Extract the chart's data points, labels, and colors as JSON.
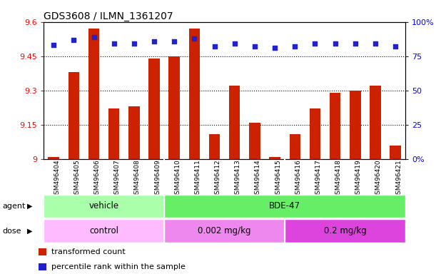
{
  "title": "GDS3608 / ILMN_1361207",
  "samples": [
    "GSM496404",
    "GSM496405",
    "GSM496406",
    "GSM496407",
    "GSM496408",
    "GSM496409",
    "GSM496410",
    "GSM496411",
    "GSM496412",
    "GSM496413",
    "GSM496414",
    "GSM496415",
    "GSM496416",
    "GSM496417",
    "GSM496418",
    "GSM496419",
    "GSM496420",
    "GSM496421"
  ],
  "bar_values": [
    9.01,
    9.38,
    9.57,
    9.22,
    9.23,
    9.44,
    9.45,
    9.57,
    9.11,
    9.32,
    9.16,
    9.01,
    9.11,
    9.22,
    9.29,
    9.3,
    9.32,
    9.06
  ],
  "dot_values": [
    83,
    87,
    89,
    84,
    84,
    86,
    86,
    88,
    82,
    84,
    82,
    81,
    82,
    84,
    84,
    84,
    84,
    82
  ],
  "ylim_left": [
    9.0,
    9.6
  ],
  "ylim_right": [
    0,
    100
  ],
  "yticks_left": [
    9.0,
    9.15,
    9.3,
    9.45,
    9.6
  ],
  "ytick_left_labels": [
    "9",
    "9.15",
    "9.3",
    "9.45",
    "9.6"
  ],
  "yticks_right": [
    0,
    25,
    50,
    75,
    100
  ],
  "ytick_right_labels": [
    "0%",
    "25",
    "50",
    "75",
    "100%"
  ],
  "hlines": [
    9.15,
    9.3,
    9.45
  ],
  "bar_color": "#cc2200",
  "dot_color": "#2222cc",
  "bar_width": 0.55,
  "agent_groups": [
    {
      "label": "vehicle",
      "start": 0,
      "end": 5,
      "color": "#aaffaa"
    },
    {
      "label": "BDE-47",
      "start": 6,
      "end": 17,
      "color": "#66ee66"
    }
  ],
  "dose_groups": [
    {
      "label": "control",
      "start": 0,
      "end": 5,
      "color": "#ffbbff"
    },
    {
      "label": "0.002 mg/kg",
      "start": 6,
      "end": 11,
      "color": "#ee88ee"
    },
    {
      "label": "0.2 mg/kg",
      "start": 12,
      "end": 17,
      "color": "#dd44dd"
    }
  ],
  "legend_items": [
    {
      "label": "transformed count",
      "color": "#cc2200"
    },
    {
      "label": "percentile rank within the sample",
      "color": "#2222cc"
    }
  ],
  "background_color": "#ffffff"
}
